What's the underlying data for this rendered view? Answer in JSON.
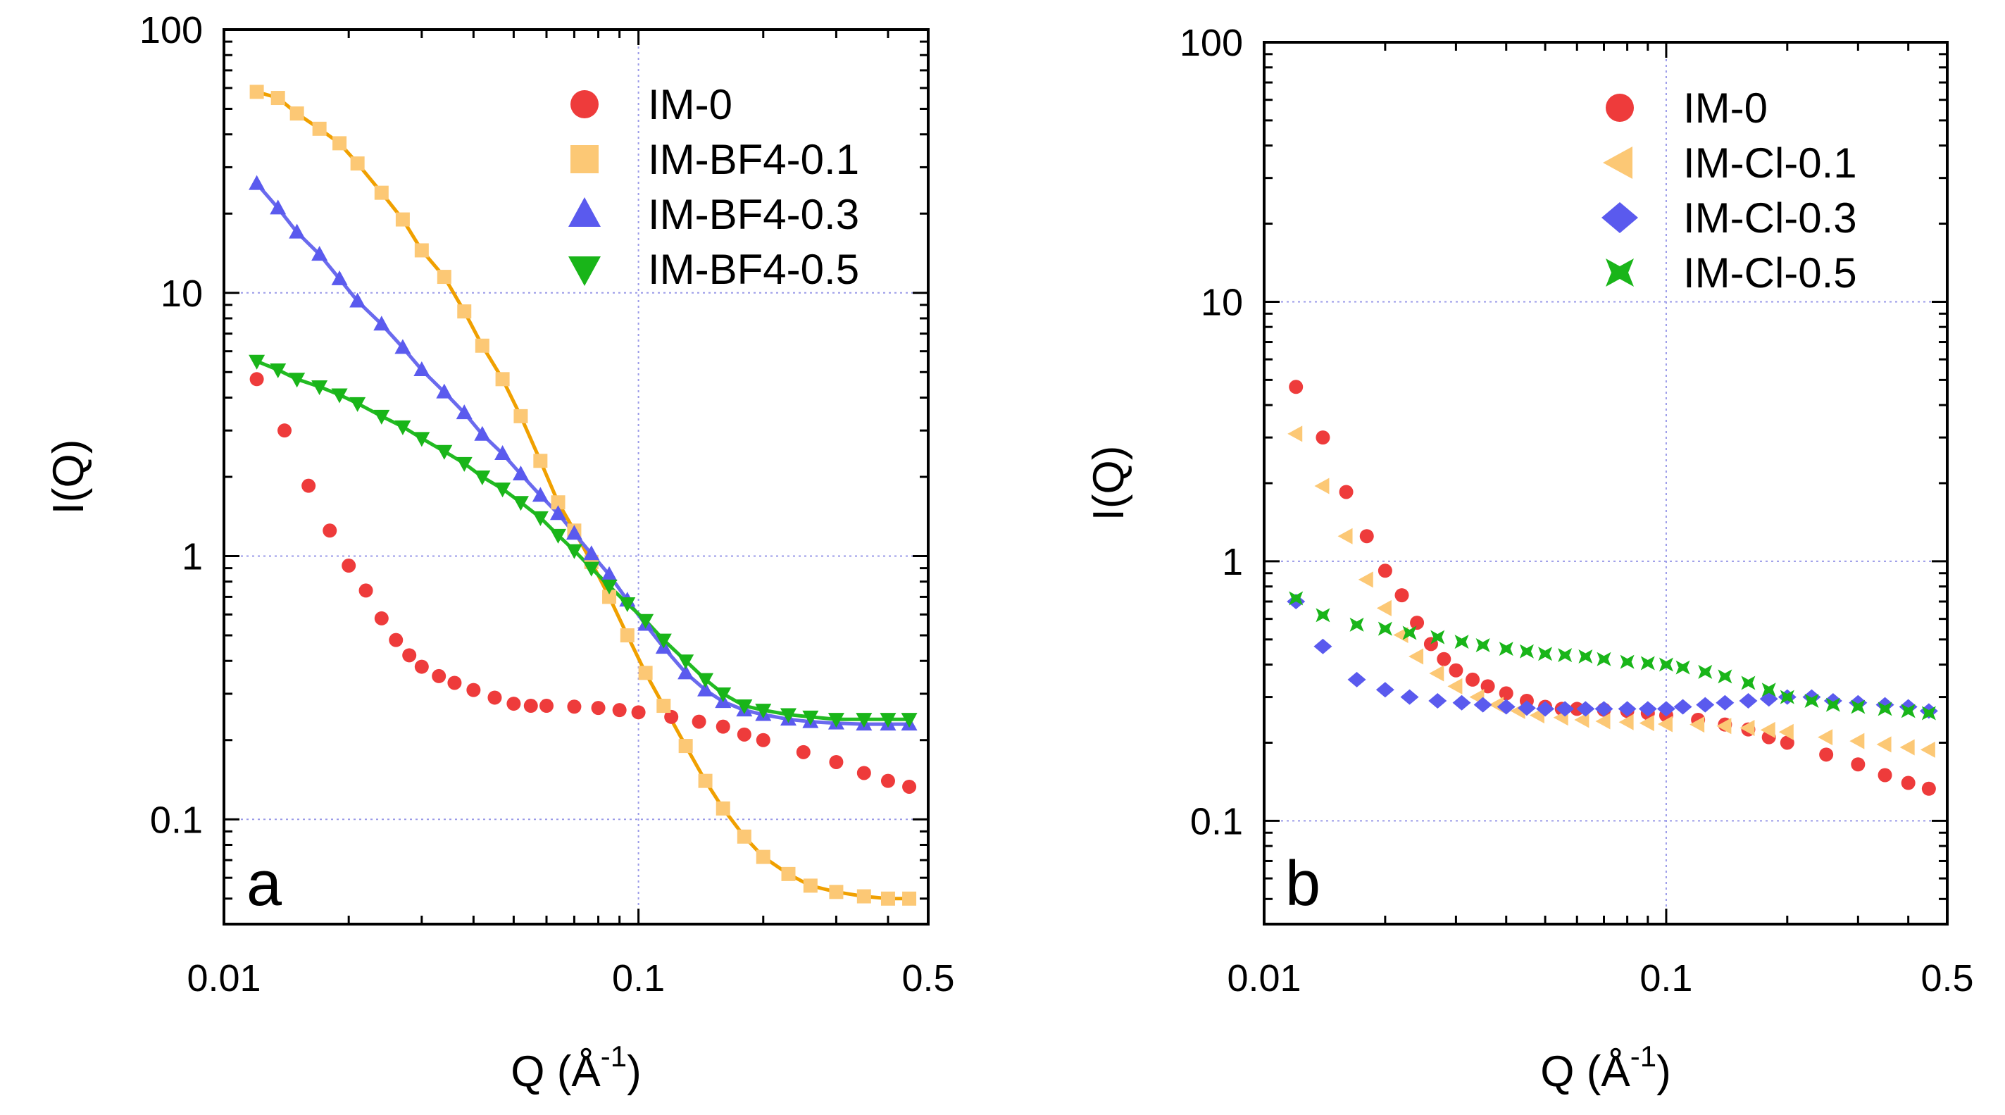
{
  "chart_data": [
    {
      "type": "scatter",
      "panel_label": "a",
      "xscale": "log",
      "yscale": "log",
      "xlim": [
        0.01,
        0.5
      ],
      "ylim": [
        0.04,
        100
      ],
      "xticks": [
        "0.01",
        "0.1",
        "0.5"
      ],
      "yticks": [
        "100",
        "10",
        "1",
        "0.1"
      ],
      "xlabel": "Q (Å",
      "xlabel_sup": "-1",
      "xlabel_end": ")",
      "ylabel": "I(Q)",
      "grid": "dotted at 0.1, 1, 10 and x=0.1",
      "legend_position": "top-right",
      "series": [
        {
          "name": "IM-0",
          "marker": "circle",
          "color": "#ee3b3b",
          "x": [
            0.012,
            0.014,
            0.016,
            0.018,
            0.02,
            0.022,
            0.024,
            0.026,
            0.028,
            0.03,
            0.033,
            0.036,
            0.04,
            0.045,
            0.05,
            0.055,
            0.06,
            0.07,
            0.08,
            0.09,
            0.1,
            0.12,
            0.14,
            0.16,
            0.18,
            0.2,
            0.25,
            0.3,
            0.35,
            0.4,
            0.45
          ],
          "y": [
            4.7,
            3.0,
            1.85,
            1.25,
            0.92,
            0.74,
            0.58,
            0.48,
            0.42,
            0.38,
            0.35,
            0.33,
            0.31,
            0.29,
            0.275,
            0.27,
            0.27,
            0.268,
            0.265,
            0.26,
            0.255,
            0.245,
            0.235,
            0.225,
            0.21,
            0.2,
            0.18,
            0.165,
            0.15,
            0.14,
            0.133
          ]
        },
        {
          "name": "IM-BF4-0.1",
          "marker": "square",
          "color": "#fcc875",
          "fit_color": "#f0a000",
          "x": [
            0.012,
            0.0135,
            0.015,
            0.017,
            0.019,
            0.021,
            0.024,
            0.027,
            0.03,
            0.034,
            0.038,
            0.042,
            0.047,
            0.052,
            0.058,
            0.064,
            0.07,
            0.077,
            0.085,
            0.094,
            0.104,
            0.115,
            0.13,
            0.145,
            0.16,
            0.18,
            0.2,
            0.23,
            0.26,
            0.3,
            0.35,
            0.4,
            0.45
          ],
          "y": [
            58,
            55,
            48,
            42,
            37,
            31,
            24,
            19,
            14.5,
            11.5,
            8.5,
            6.3,
            4.7,
            3.4,
            2.3,
            1.6,
            1.25,
            0.95,
            0.7,
            0.5,
            0.36,
            0.27,
            0.19,
            0.14,
            0.11,
            0.086,
            0.072,
            0.062,
            0.056,
            0.053,
            0.051,
            0.05,
            0.05
          ]
        },
        {
          "name": "IM-BF4-0.3",
          "marker": "triangle-up",
          "color": "#5a5aee",
          "fit_color": "#6a6aee",
          "x": [
            0.012,
            0.0135,
            0.015,
            0.017,
            0.019,
            0.021,
            0.024,
            0.027,
            0.03,
            0.034,
            0.038,
            0.042,
            0.047,
            0.052,
            0.058,
            0.064,
            0.07,
            0.077,
            0.085,
            0.094,
            0.104,
            0.115,
            0.13,
            0.145,
            0.16,
            0.18,
            0.2,
            0.23,
            0.26,
            0.3,
            0.35,
            0.4,
            0.45
          ],
          "y": [
            26,
            21,
            17,
            14,
            11.3,
            9.3,
            7.6,
            6.2,
            5.1,
            4.2,
            3.5,
            2.9,
            2.45,
            2.05,
            1.7,
            1.45,
            1.22,
            1.02,
            0.85,
            0.68,
            0.55,
            0.45,
            0.36,
            0.31,
            0.28,
            0.26,
            0.25,
            0.24,
            0.235,
            0.232,
            0.23,
            0.23,
            0.23
          ]
        },
        {
          "name": "IM-BF4-0.5",
          "marker": "triangle-down",
          "color": "#19b519",
          "fit_color": "#22bb22",
          "x": [
            0.012,
            0.0135,
            0.015,
            0.017,
            0.019,
            0.021,
            0.024,
            0.027,
            0.03,
            0.034,
            0.038,
            0.042,
            0.047,
            0.052,
            0.058,
            0.064,
            0.07,
            0.077,
            0.085,
            0.094,
            0.104,
            0.115,
            0.13,
            0.145,
            0.16,
            0.18,
            0.2,
            0.23,
            0.26,
            0.3,
            0.35,
            0.4,
            0.45
          ],
          "y": [
            5.5,
            5.1,
            4.7,
            4.4,
            4.1,
            3.8,
            3.4,
            3.1,
            2.8,
            2.5,
            2.25,
            2.0,
            1.8,
            1.6,
            1.4,
            1.2,
            1.05,
            0.9,
            0.77,
            0.66,
            0.57,
            0.48,
            0.4,
            0.34,
            0.3,
            0.27,
            0.26,
            0.25,
            0.245,
            0.24,
            0.24,
            0.24,
            0.24
          ]
        }
      ]
    },
    {
      "type": "scatter",
      "panel_label": "b",
      "xscale": "log",
      "yscale": "log",
      "xlim": [
        0.01,
        0.5
      ],
      "ylim": [
        0.04,
        100
      ],
      "xticks": [
        "0.01",
        "0.1",
        "0.5"
      ],
      "yticks": [
        "100",
        "10",
        "1",
        "0.1"
      ],
      "xlabel": "Q (Å",
      "xlabel_sup": "-1",
      "xlabel_end": ")",
      "ylabel": "I(Q)",
      "grid": "dotted at 0.1, 1, 10 and x=0.1",
      "legend_position": "top-right",
      "series": [
        {
          "name": "IM-0",
          "marker": "circle",
          "color": "#ee3b3b",
          "x": [
            0.012,
            0.014,
            0.016,
            0.018,
            0.02,
            0.022,
            0.024,
            0.026,
            0.028,
            0.03,
            0.033,
            0.036,
            0.04,
            0.045,
            0.05,
            0.055,
            0.06,
            0.07,
            0.08,
            0.09,
            0.1,
            0.12,
            0.14,
            0.16,
            0.18,
            0.2,
            0.25,
            0.3,
            0.35,
            0.4,
            0.45
          ],
          "y": [
            4.7,
            3.0,
            1.85,
            1.25,
            0.92,
            0.74,
            0.58,
            0.48,
            0.42,
            0.38,
            0.35,
            0.33,
            0.31,
            0.29,
            0.275,
            0.27,
            0.27,
            0.268,
            0.265,
            0.26,
            0.255,
            0.245,
            0.235,
            0.225,
            0.21,
            0.2,
            0.18,
            0.165,
            0.15,
            0.14,
            0.133
          ]
        },
        {
          "name": "IM-Cl-0.1",
          "marker": "triangle-left",
          "color": "#fcc875",
          "x": [
            0.012,
            0.014,
            0.016,
            0.018,
            0.02,
            0.022,
            0.024,
            0.027,
            0.03,
            0.034,
            0.038,
            0.043,
            0.048,
            0.055,
            0.062,
            0.07,
            0.08,
            0.09,
            0.1,
            0.12,
            0.14,
            0.16,
            0.18,
            0.2,
            0.25,
            0.3,
            0.35,
            0.4,
            0.45
          ],
          "y": [
            3.1,
            1.95,
            1.25,
            0.85,
            0.66,
            0.52,
            0.43,
            0.37,
            0.33,
            0.3,
            0.28,
            0.265,
            0.255,
            0.25,
            0.245,
            0.242,
            0.24,
            0.238,
            0.236,
            0.235,
            0.232,
            0.228,
            0.224,
            0.22,
            0.21,
            0.203,
            0.197,
            0.192,
            0.188
          ]
        },
        {
          "name": "IM-Cl-0.3",
          "marker": "diamond",
          "color": "#5a5aee",
          "x": [
            0.012,
            0.014,
            0.017,
            0.02,
            0.023,
            0.027,
            0.031,
            0.035,
            0.04,
            0.045,
            0.05,
            0.056,
            0.063,
            0.07,
            0.08,
            0.09,
            0.1,
            0.11,
            0.125,
            0.14,
            0.16,
            0.18,
            0.2,
            0.23,
            0.26,
            0.3,
            0.35,
            0.4,
            0.45
          ],
          "y": [
            0.7,
            0.47,
            0.35,
            0.32,
            0.3,
            0.29,
            0.285,
            0.28,
            0.275,
            0.272,
            0.27,
            0.27,
            0.27,
            0.27,
            0.27,
            0.27,
            0.27,
            0.275,
            0.28,
            0.285,
            0.29,
            0.295,
            0.3,
            0.3,
            0.29,
            0.285,
            0.28,
            0.275,
            0.265
          ]
        },
        {
          "name": "IM-Cl-0.5",
          "marker": "x-square",
          "color": "#19b519",
          "x": [
            0.012,
            0.014,
            0.017,
            0.02,
            0.023,
            0.027,
            0.031,
            0.035,
            0.04,
            0.045,
            0.05,
            0.056,
            0.063,
            0.07,
            0.08,
            0.09,
            0.1,
            0.11,
            0.125,
            0.14,
            0.16,
            0.18,
            0.2,
            0.23,
            0.26,
            0.3,
            0.35,
            0.4,
            0.45
          ],
          "y": [
            0.72,
            0.62,
            0.57,
            0.55,
            0.53,
            0.51,
            0.49,
            0.475,
            0.46,
            0.45,
            0.44,
            0.435,
            0.43,
            0.42,
            0.41,
            0.405,
            0.4,
            0.39,
            0.375,
            0.36,
            0.34,
            0.32,
            0.3,
            0.29,
            0.28,
            0.275,
            0.27,
            0.265,
            0.26
          ]
        }
      ]
    }
  ]
}
